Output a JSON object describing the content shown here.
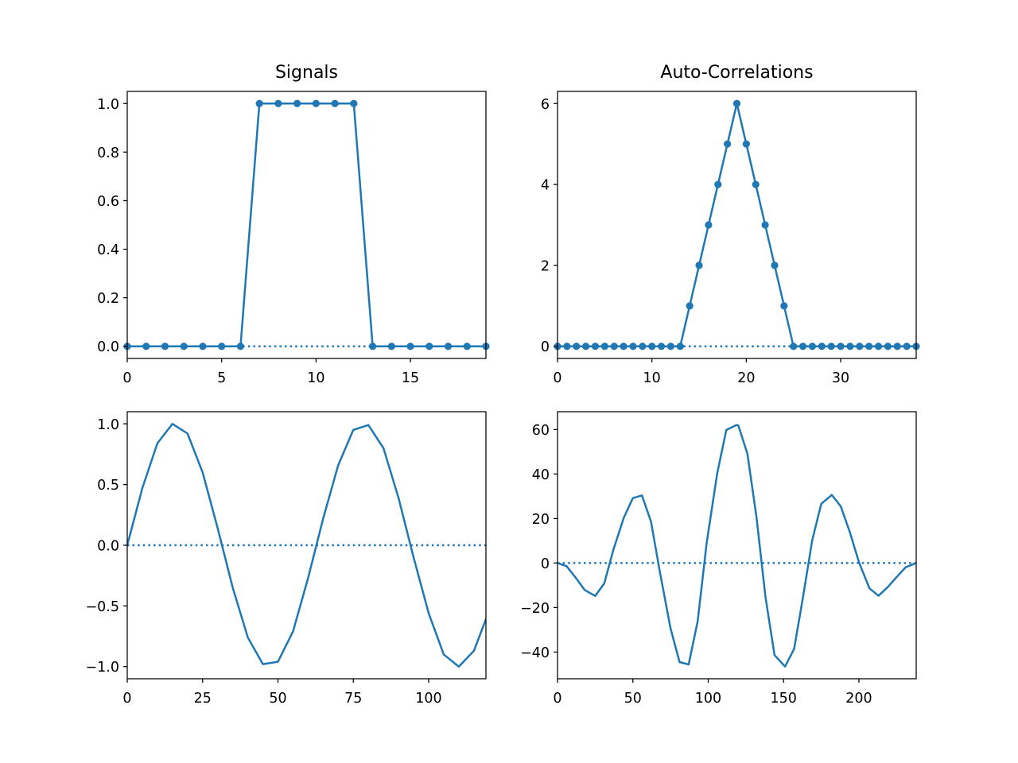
{
  "colors": {
    "series": "#1f77b4",
    "axes": "#000000",
    "background": "#ffffff"
  },
  "chart_data": [
    {
      "type": "line",
      "panel": "top-left",
      "title": "Signals",
      "xlabel": "",
      "ylabel": "",
      "xlim": [
        0,
        19
      ],
      "ylim": [
        -0.05,
        1.05
      ],
      "xticks": [
        0,
        5,
        10,
        15
      ],
      "yticks": [
        0.0,
        0.2,
        0.4,
        0.6,
        0.8,
        1.0
      ],
      "ytick_labels": [
        "0.0",
        "0.2",
        "0.4",
        "0.6",
        "0.8",
        "1.0"
      ],
      "markers": true,
      "zero_line": true,
      "grid": false,
      "x": [
        0,
        1,
        2,
        3,
        4,
        5,
        6,
        7,
        8,
        9,
        10,
        11,
        12,
        13,
        14,
        15,
        16,
        17,
        18,
        19
      ],
      "values": [
        0,
        0,
        0,
        0,
        0,
        0,
        0,
        1,
        1,
        1,
        1,
        1,
        1,
        0,
        0,
        0,
        0,
        0,
        0,
        0
      ]
    },
    {
      "type": "line",
      "panel": "top-right",
      "title": "Auto-Correlations",
      "xlabel": "",
      "ylabel": "",
      "xlim": [
        0,
        38
      ],
      "ylim": [
        -0.3,
        6.3
      ],
      "xticks": [
        0,
        10,
        20,
        30
      ],
      "yticks": [
        0,
        2,
        4,
        6
      ],
      "markers": true,
      "zero_line": true,
      "grid": false,
      "x": [
        0,
        1,
        2,
        3,
        4,
        5,
        6,
        7,
        8,
        9,
        10,
        11,
        12,
        13,
        14,
        15,
        16,
        17,
        18,
        19,
        20,
        21,
        22,
        23,
        24,
        25,
        26,
        27,
        28,
        29,
        30,
        31,
        32,
        33,
        34,
        35,
        36,
        37,
        38
      ],
      "values": [
        0,
        0,
        0,
        0,
        0,
        0,
        0,
        0,
        0,
        0,
        0,
        0,
        0,
        0,
        1,
        2,
        3,
        4,
        5,
        6,
        5,
        4,
        3,
        2,
        1,
        0,
        0,
        0,
        0,
        0,
        0,
        0,
        0,
        0,
        0,
        0,
        0,
        0,
        0
      ]
    },
    {
      "type": "line",
      "panel": "bottom-left",
      "title": "",
      "xlabel": "",
      "ylabel": "",
      "xlim": [
        0,
        119
      ],
      "ylim": [
        -1.1,
        1.1
      ],
      "xticks": [
        0,
        25,
        50,
        75,
        100
      ],
      "yticks": [
        -1.0,
        -0.5,
        0.0,
        0.5,
        1.0
      ],
      "ytick_labels": [
        "−1.0",
        "−0.5",
        "0.0",
        "0.5",
        "1.0"
      ],
      "markers": false,
      "zero_line": true,
      "grid": false,
      "x": [
        0,
        5,
        10,
        15,
        20,
        25,
        30,
        35,
        40,
        45,
        50,
        55,
        60,
        65,
        70,
        75,
        80,
        85,
        90,
        95,
        100,
        105,
        110,
        115,
        119
      ],
      "values": [
        0,
        0.47,
        0.84,
        1.0,
        0.92,
        0.6,
        0.14,
        -0.35,
        -0.76,
        -0.98,
        -0.96,
        -0.71,
        -0.27,
        0.22,
        0.66,
        0.95,
        0.99,
        0.8,
        0.39,
        -0.1,
        -0.56,
        -0.9,
        -1.0,
        -0.87,
        -0.61
      ]
    },
    {
      "type": "line",
      "panel": "bottom-right",
      "title": "",
      "xlabel": "",
      "ylabel": "",
      "xlim": [
        0,
        238
      ],
      "ylim": [
        -52,
        68
      ],
      "xticks": [
        0,
        50,
        100,
        150,
        200
      ],
      "yticks": [
        -40,
        -20,
        0,
        20,
        40,
        60
      ],
      "ytick_labels": [
        "−40",
        "−20",
        "0",
        "20",
        "40",
        "60"
      ],
      "markers": false,
      "zero_line": true,
      "grid": false,
      "x": [
        0,
        6,
        12,
        18,
        25,
        31,
        37,
        44,
        50,
        56,
        62,
        68,
        75,
        81,
        87,
        93,
        99,
        106,
        112,
        118,
        119,
        120,
        126,
        132,
        138,
        144,
        151,
        157,
        163,
        169,
        175,
        182,
        188,
        194,
        200,
        207,
        213,
        219,
        225,
        231,
        238
      ],
      "values": [
        0,
        -1.4,
        -6.5,
        -12.1,
        -14.8,
        -9.2,
        5.8,
        20.4,
        29.2,
        30.4,
        18.7,
        -4.3,
        -29.4,
        -44.5,
        -45.6,
        -26.2,
        9.2,
        40.4,
        59.8,
        61.8,
        62,
        61.8,
        49.1,
        20.8,
        -15.3,
        -41.4,
        -46.5,
        -38.6,
        -14.9,
        10.2,
        26.6,
        30.6,
        25.4,
        13.8,
        0.4,
        -11.4,
        -14.7,
        -10.9,
        -6.3,
        -1.9,
        0
      ]
    }
  ]
}
